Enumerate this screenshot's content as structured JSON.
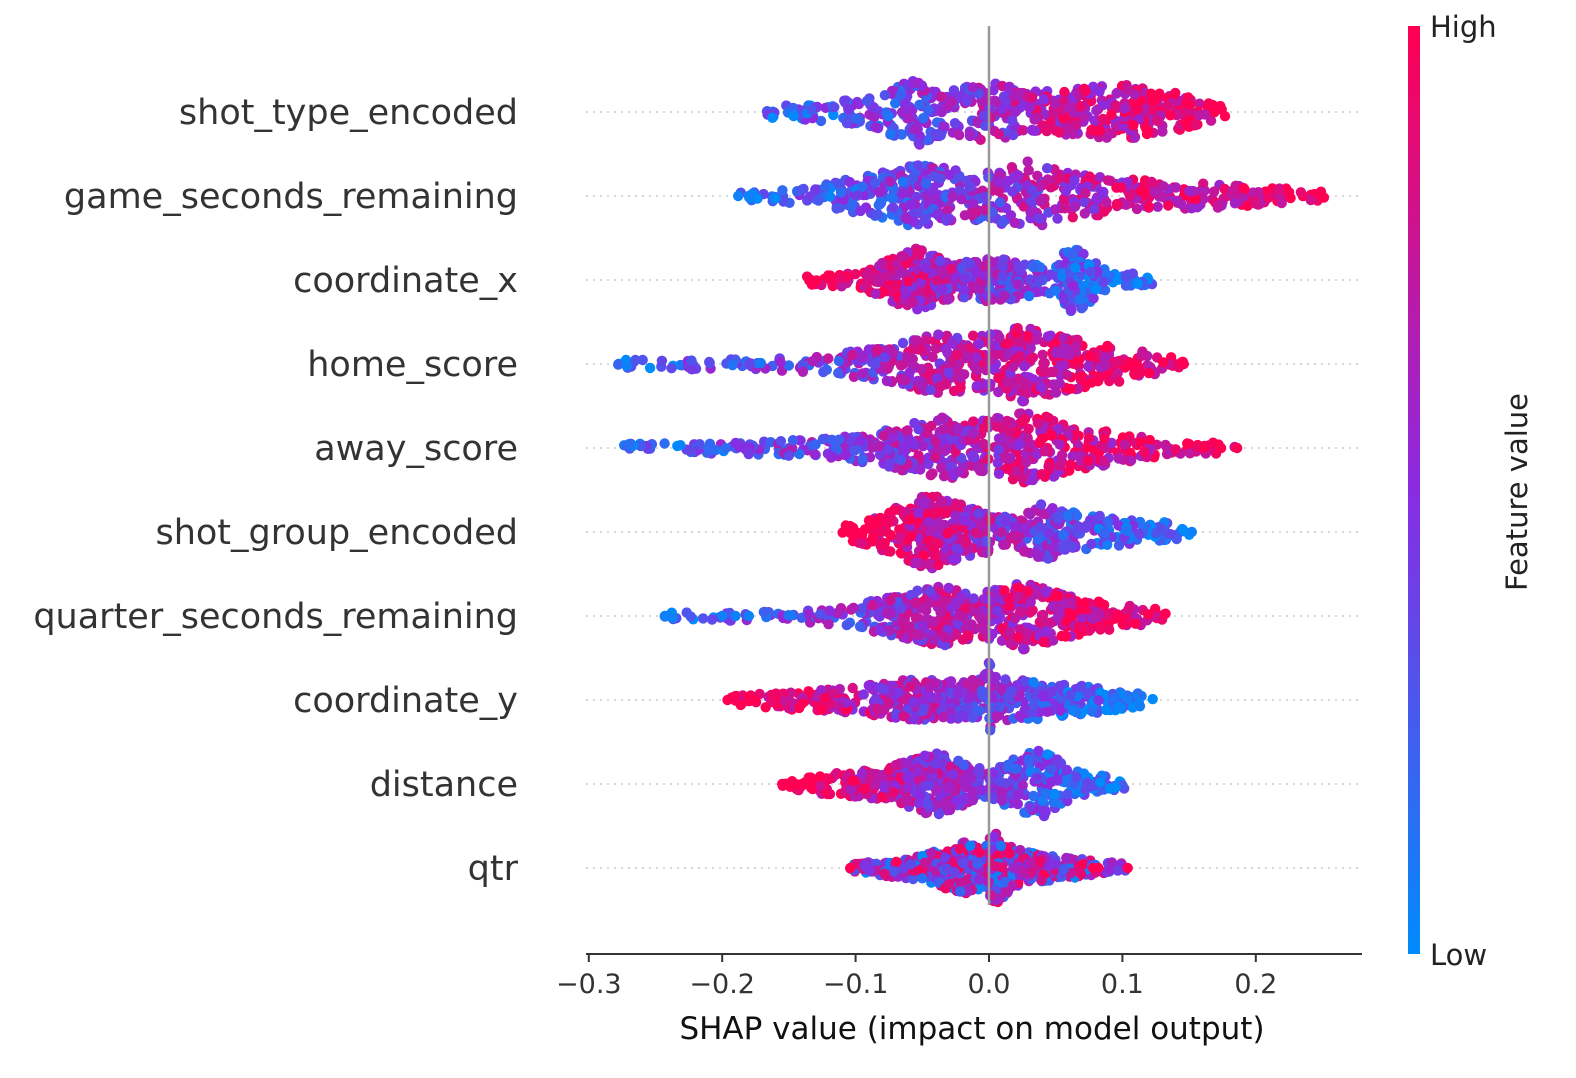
{
  "chart_data": {
    "type": "scatter",
    "subtype": "shap-beeswarm",
    "xlabel": "SHAP value (impact on model output)",
    "xlim": [
      -0.305,
      0.282
    ],
    "xticks": [
      -0.3,
      -0.2,
      -0.1,
      0.0,
      0.1,
      0.2
    ],
    "xtick_labels": [
      "−0.3",
      "−0.2",
      "−0.1",
      "0.0",
      "0.1",
      "0.2"
    ],
    "zero_line": 0.0,
    "colorbar": {
      "title": "Feature value",
      "high_label": "High",
      "low_label": "Low",
      "high_color": "#ff0052",
      "mid_color": "#8a2be2",
      "low_color": "#008bfb"
    },
    "features": [
      {
        "name": "shot_type_encoded",
        "min": -0.167,
        "max": 0.177,
        "density": [
          [
            -0.167,
            0.15
          ],
          [
            -0.12,
            0.25
          ],
          [
            -0.085,
            0.45
          ],
          [
            -0.055,
            0.95
          ],
          [
            -0.03,
            0.55
          ],
          [
            0.0,
            0.8
          ],
          [
            0.03,
            0.55
          ],
          [
            0.06,
            0.6
          ],
          [
            0.1,
            0.75
          ],
          [
            0.14,
            0.5
          ],
          [
            0.177,
            0.15
          ]
        ],
        "color_trend": "increasing",
        "outliers": []
      },
      {
        "name": "game_seconds_remaining",
        "min": -0.188,
        "max": 0.253,
        "density": [
          [
            -0.188,
            0.1
          ],
          [
            -0.14,
            0.2
          ],
          [
            -0.09,
            0.55
          ],
          [
            -0.05,
            0.85
          ],
          [
            -0.025,
            0.7
          ],
          [
            0.0,
            0.65
          ],
          [
            0.025,
            0.95
          ],
          [
            0.06,
            0.6
          ],
          [
            0.1,
            0.45
          ],
          [
            0.18,
            0.3
          ],
          [
            0.253,
            0.12
          ]
        ],
        "color_trend": "increasing",
        "outliers": [
          -0.188,
          -0.18
        ]
      },
      {
        "name": "coordinate_x",
        "min": -0.141,
        "max": 0.126,
        "density": [
          [
            -0.141,
            0.1
          ],
          [
            -0.1,
            0.2
          ],
          [
            -0.08,
            0.45
          ],
          [
            -0.055,
            0.85
          ],
          [
            -0.03,
            0.5
          ],
          [
            -0.015,
            0.55
          ],
          [
            0.01,
            0.55
          ],
          [
            0.035,
            0.4
          ],
          [
            0.05,
            0.35
          ],
          [
            0.06,
            1.0
          ],
          [
            0.075,
            0.6
          ],
          [
            0.09,
            0.25
          ],
          [
            0.126,
            0.1
          ]
        ],
        "color_trend": "decreasing",
        "outliers": []
      },
      {
        "name": "home_score",
        "min": -0.278,
        "max": 0.146,
        "density": [
          [
            -0.278,
            0.12
          ],
          [
            -0.2,
            0.15
          ],
          [
            -0.12,
            0.25
          ],
          [
            -0.07,
            0.5
          ],
          [
            -0.04,
            0.8
          ],
          [
            -0.01,
            0.75
          ],
          [
            0.025,
            1.0
          ],
          [
            0.06,
            0.7
          ],
          [
            0.1,
            0.45
          ],
          [
            0.14,
            0.15
          ]
        ],
        "color_trend": "increasing",
        "outliers": [
          0.146
        ]
      },
      {
        "name": "away_score",
        "min": -0.278,
        "max": 0.186,
        "density": [
          [
            -0.278,
            0.12
          ],
          [
            -0.2,
            0.15
          ],
          [
            -0.12,
            0.25
          ],
          [
            -0.07,
            0.55
          ],
          [
            -0.03,
            0.85
          ],
          [
            -0.01,
            0.7
          ],
          [
            0.03,
            0.95
          ],
          [
            0.07,
            0.6
          ],
          [
            0.1,
            0.4
          ],
          [
            0.14,
            0.15
          ]
        ],
        "color_trend": "increasing",
        "outliers": [
          0.161,
          0.174,
          0.186
        ]
      },
      {
        "name": "shot_group_encoded",
        "min": -0.11,
        "max": 0.152,
        "density": [
          [
            -0.11,
            0.15
          ],
          [
            -0.08,
            0.5
          ],
          [
            -0.045,
            1.0
          ],
          [
            -0.01,
            0.6
          ],
          [
            0.02,
            0.4
          ],
          [
            0.04,
            0.75
          ],
          [
            0.065,
            0.5
          ],
          [
            0.1,
            0.35
          ],
          [
            0.135,
            0.25
          ],
          [
            0.152,
            0.1
          ]
        ],
        "color_trend": "decreasing",
        "outliers": [
          0.152
        ]
      },
      {
        "name": "quarter_seconds_remaining",
        "min": -0.243,
        "max": 0.133,
        "density": [
          [
            -0.243,
            0.1
          ],
          [
            -0.2,
            0.12
          ],
          [
            -0.15,
            0.15
          ],
          [
            -0.1,
            0.3
          ],
          [
            -0.07,
            0.55
          ],
          [
            -0.035,
            0.8
          ],
          [
            -0.01,
            0.6
          ],
          [
            0.025,
            0.9
          ],
          [
            0.06,
            0.55
          ],
          [
            0.1,
            0.3
          ],
          [
            0.133,
            0.15
          ]
        ],
        "color_trend": "increasing",
        "outliers": [
          -0.243,
          -0.24,
          -0.2,
          -0.19,
          -0.18
        ]
      },
      {
        "name": "coordinate_y",
        "min": -0.196,
        "max": 0.124,
        "density": [
          [
            -0.196,
            0.1
          ],
          [
            -0.15,
            0.25
          ],
          [
            -0.1,
            0.35
          ],
          [
            -0.06,
            0.55
          ],
          [
            -0.03,
            0.5
          ],
          [
            -0.005,
            0.55
          ],
          [
            0.0,
            1.0
          ],
          [
            0.008,
            0.55
          ],
          [
            0.04,
            0.5
          ],
          [
            0.08,
            0.35
          ],
          [
            0.124,
            0.12
          ]
        ],
        "color_trend": "decreasing",
        "outliers": [
          -0.196,
          -0.18,
          -0.175
        ]
      },
      {
        "name": "distance",
        "min": -0.155,
        "max": 0.105,
        "density": [
          [
            -0.155,
            0.1
          ],
          [
            -0.12,
            0.3
          ],
          [
            -0.08,
            0.4
          ],
          [
            -0.04,
            0.85
          ],
          [
            -0.015,
            0.5
          ],
          [
            0.0,
            0.35
          ],
          [
            0.02,
            0.7
          ],
          [
            0.04,
            0.95
          ],
          [
            0.06,
            0.45
          ],
          [
            0.08,
            0.25
          ],
          [
            0.105,
            0.1
          ]
        ],
        "color_trend": "decreasing",
        "outliers": [
          -0.155,
          -0.148,
          -0.14
        ]
      },
      {
        "name": "qtr",
        "min": -0.104,
        "max": 0.104,
        "density": [
          [
            -0.104,
            0.1
          ],
          [
            -0.08,
            0.2
          ],
          [
            -0.05,
            0.35
          ],
          [
            -0.02,
            0.7
          ],
          [
            -0.005,
            0.55
          ],
          [
            0.005,
            0.95
          ],
          [
            0.02,
            0.5
          ],
          [
            0.05,
            0.3
          ],
          [
            0.08,
            0.2
          ],
          [
            0.104,
            0.1
          ]
        ],
        "color_trend": "mixed",
        "outliers": [
          -0.104,
          0.078,
          0.082,
          0.104
        ]
      }
    ]
  }
}
